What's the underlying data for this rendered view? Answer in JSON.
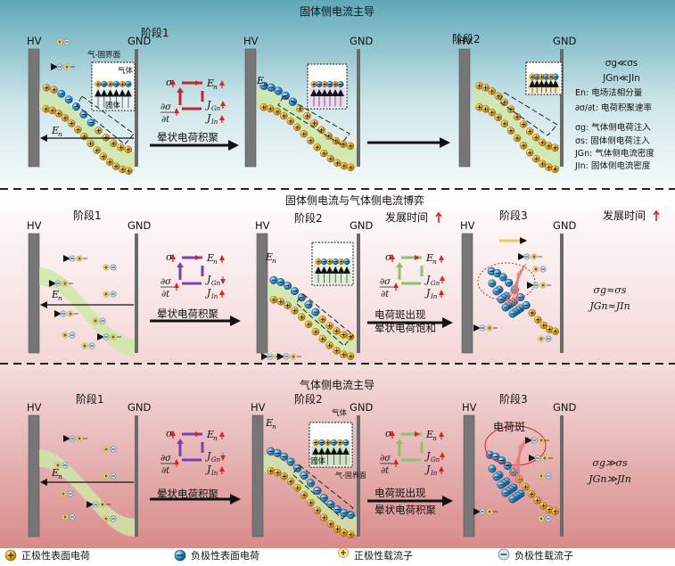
{
  "rows": [
    {
      "title": "固体侧电流主导",
      "stage1": "阶段1",
      "stage2": "阶段2",
      "arrow_label": "晕状电荷积聚",
      "interface_label": "气-固界面",
      "gas_label": "气体",
      "solid_label": "固体",
      "legend_lines": [
        "σg≪σs",
        "JGn≪JIn",
        "En: 电场法相分量",
        "∂σ/∂t: 电荷积聚速率",
        "σg: 气体侧电荷注入",
        "σs: 固体侧电荷注入",
        "JGn: 气体侧电流密度",
        "JIn: 固体侧电流密度"
      ]
    },
    {
      "title": "固体侧电流与气体侧电流博弈",
      "stage1": "阶段1",
      "stage2": "阶段2",
      "stage3": "阶段3",
      "dev_time": "发展时间",
      "arrow1_label": "晕状电荷积聚",
      "arrow2_label_a": "电荷斑出现",
      "arrow2_label_b": "晕状电荷饱和",
      "relation_a": "σg≈σs",
      "relation_b": "JGn≈JIn"
    },
    {
      "title": "气体侧电流主导",
      "stage1": "阶段1",
      "stage2": "阶段2",
      "stage3": "阶段3",
      "arrow1_label": "晕状电荷积聚",
      "arrow2_label_a": "电荷斑出现",
      "arrow2_label_b": "晕状电荷积聚",
      "spot_label": "电荷斑",
      "gas_label": "气体",
      "solid_label": "固体",
      "interface_label": "气-固界面",
      "relation_a": "σg≫σs",
      "relation_b": "JGn≫JIn"
    }
  ],
  "electrode_labels": {
    "hv": "HV",
    "gnd": "GND"
  },
  "field_label": "En",
  "legend": [
    {
      "label": "正极性表面电荷",
      "icon": "positive-surface-charge-icon"
    },
    {
      "label": "负极性表面电荷",
      "icon": "negative-surface-charge-icon"
    },
    {
      "label": "正极性载流子",
      "icon": "positive-carrier-icon"
    },
    {
      "label": "负极性载流子",
      "icon": "negative-carrier-icon"
    }
  ],
  "colors": {
    "gold": "#e0a21a",
    "blue": "#2e86c1",
    "green": "#cfe6a8",
    "electrode": "#7b7b7b",
    "red": "#e02020"
  }
}
